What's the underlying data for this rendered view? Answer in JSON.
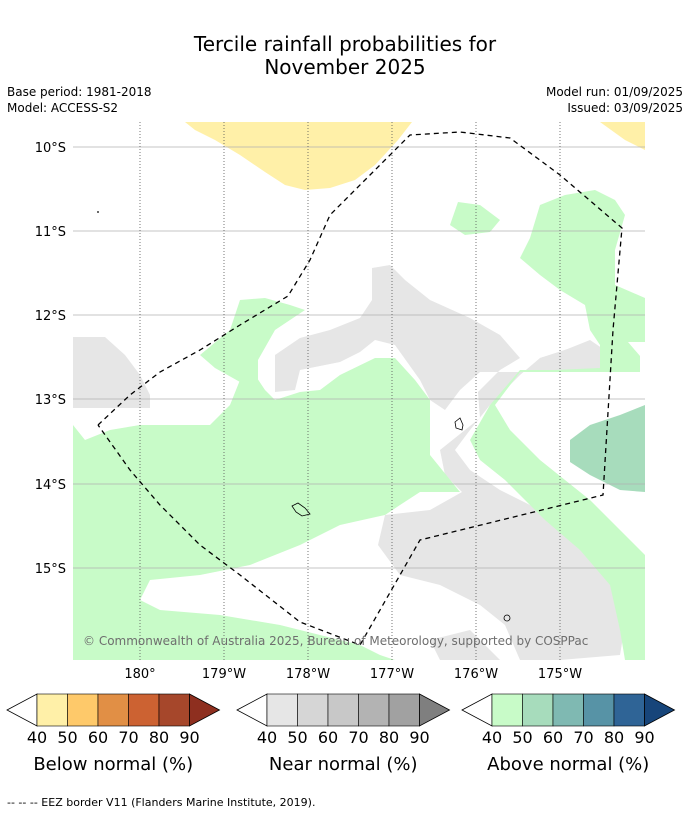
{
  "title_line1": "Tercile rainfall probabilities for",
  "title_line2": "November 2025",
  "base_period": "Base period: 1981-2018",
  "model": "Model: ACCESS-S2",
  "model_run": "Model run: 01/09/2025",
  "issued": "Issued: 03/09/2025",
  "lat_labels": [
    "10°S",
    "11°S",
    "12°S",
    "13°S",
    "14°S",
    "15°S"
  ],
  "lon_labels": [
    "180°",
    "179°W",
    "178°W",
    "177°W",
    "176°W",
    "175°W"
  ],
  "copyright": "© Commonwealth of Australia 2025, Bureau of Meteorology, supported by COSPPac",
  "colorbars": [
    {
      "label": "Below normal (%)",
      "ticks": [
        "40",
        "50",
        "60",
        "70",
        "80",
        "90"
      ],
      "colors": [
        "#fff0a8",
        "#fec96a",
        "#e18f45",
        "#cc6232",
        "#a6472b",
        "#8e2f1f"
      ]
    },
    {
      "label": "Near normal (%)",
      "ticks": [
        "40",
        "50",
        "60",
        "70",
        "80",
        "90"
      ],
      "colors": [
        "#e6e6e6",
        "#d6d6d6",
        "#c8c8c8",
        "#b3b3b3",
        "#a1a1a1",
        "#7f7f7f"
      ]
    },
    {
      "label": "Above normal (%)",
      "ticks": [
        "40",
        "50",
        "60",
        "70",
        "80",
        "90"
      ],
      "colors": [
        "#c8fbc8",
        "#a7dcbc",
        "#7fb9b2",
        "#5793a6",
        "#2f6496",
        "#17457a"
      ]
    }
  ],
  "legend_text": "--  --  -- EEZ border V11 (Flanders Marine Institute, 2019).",
  "colors": {
    "near_normal_40": "#e6e6e6",
    "below_normal_40": "#fff0a8",
    "above_normal_40": "#c8fbc8",
    "above_normal_50": "#a7dcbc",
    "grid": "#b0b0b0"
  }
}
